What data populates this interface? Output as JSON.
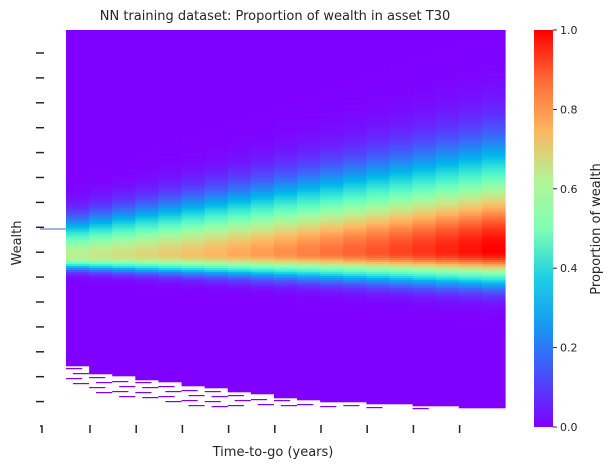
{
  "chart_data": {
    "type": "heatmap",
    "title": "NN training dataset: Proportion of wealth in asset T30",
    "xlabel": "Time-to-go (years)",
    "ylabel": "Wealth",
    "colorbar": {
      "label": "Proportion of wealth",
      "ticks": [
        "0.0",
        "0.2",
        "0.4",
        "0.6",
        "0.8",
        "1.0"
      ],
      "vmin": 0,
      "vmax": 1,
      "colormap": "rainbow"
    },
    "x_tick_labels_visible": false,
    "y_tick_labels_visible": false,
    "grid": false
  }
}
